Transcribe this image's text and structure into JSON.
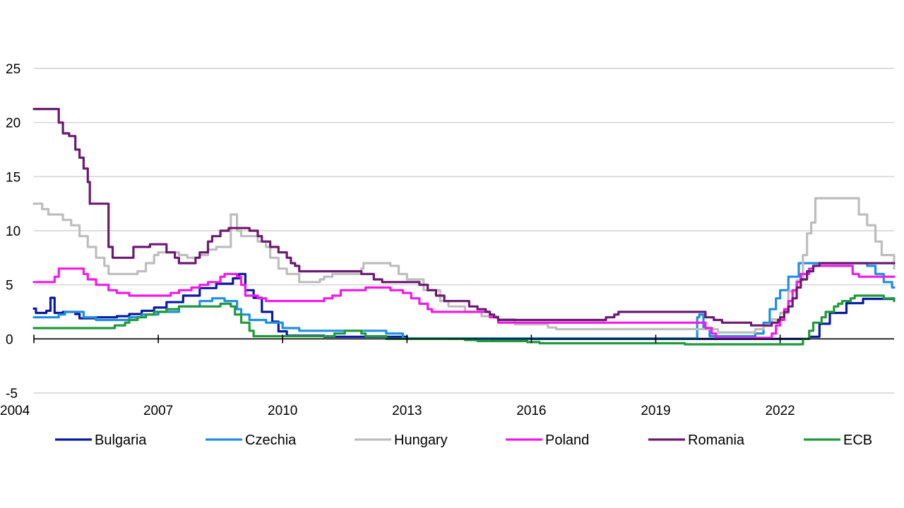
{
  "chart_data": {
    "type": "line",
    "title": "",
    "xlabel": "",
    "ylabel": "",
    "xlim": [
      2004,
      2024.75
    ],
    "ylim": [
      -5,
      25
    ],
    "yticks": [
      -5,
      0,
      5,
      10,
      15,
      20,
      25
    ],
    "xticks": [
      2004,
      2007,
      2010,
      2013,
      2016,
      2019,
      2022
    ],
    "ytick_labels": [
      "-5",
      "0",
      "5",
      "10",
      "15",
      "20",
      "25"
    ],
    "xtick_labels": [
      "2004",
      "2007",
      "2010",
      "2013",
      "2016",
      "2019",
      "2022"
    ],
    "grid": "horizontal",
    "legend_position": "bottom",
    "step": true,
    "series": [
      {
        "name": "Bulgaria",
        "color": "#0a1aa0",
        "points": [
          [
            2004.0,
            2.8
          ],
          [
            2004.05,
            2.4
          ],
          [
            2004.3,
            2.6
          ],
          [
            2004.4,
            3.8
          ],
          [
            2004.5,
            2.4
          ],
          [
            2004.7,
            2.5
          ],
          [
            2005.0,
            2.3
          ],
          [
            2005.1,
            1.9
          ],
          [
            2005.5,
            2.0
          ],
          [
            2006.0,
            2.1
          ],
          [
            2006.3,
            2.3
          ],
          [
            2006.6,
            2.6
          ],
          [
            2006.9,
            2.9
          ],
          [
            2007.2,
            3.4
          ],
          [
            2007.6,
            4.0
          ],
          [
            2008.0,
            4.7
          ],
          [
            2008.4,
            5.1
          ],
          [
            2008.8,
            5.6
          ],
          [
            2008.95,
            6.0
          ],
          [
            2009.1,
            4.5
          ],
          [
            2009.3,
            3.8
          ],
          [
            2009.5,
            2.5
          ],
          [
            2009.75,
            1.6
          ],
          [
            2009.9,
            0.7
          ],
          [
            2010.1,
            0.3
          ],
          [
            2011.0,
            0.2
          ],
          [
            2012.0,
            0.2
          ],
          [
            2013.0,
            0.05
          ],
          [
            2014.0,
            0.02
          ],
          [
            2015.0,
            0.01
          ],
          [
            2016.0,
            0.0
          ],
          [
            2022.5,
            0.0
          ],
          [
            2022.7,
            0.2
          ],
          [
            2022.95,
            1.4
          ],
          [
            2023.2,
            2.4
          ],
          [
            2023.6,
            3.3
          ],
          [
            2024.0,
            3.7
          ],
          [
            2024.75,
            3.7
          ]
        ]
      },
      {
        "name": "Czechia",
        "color": "#1e8fe0",
        "points": [
          [
            2004.0,
            2.0
          ],
          [
            2004.6,
            2.25
          ],
          [
            2004.75,
            2.5
          ],
          [
            2005.2,
            2.0
          ],
          [
            2005.5,
            1.75
          ],
          [
            2006.3,
            2.0
          ],
          [
            2006.6,
            2.25
          ],
          [
            2007.0,
            2.5
          ],
          [
            2007.5,
            3.0
          ],
          [
            2008.0,
            3.5
          ],
          [
            2008.3,
            3.75
          ],
          [
            2008.6,
            3.5
          ],
          [
            2008.9,
            2.75
          ],
          [
            2009.0,
            2.25
          ],
          [
            2009.2,
            1.75
          ],
          [
            2009.6,
            1.5
          ],
          [
            2010.0,
            1.0
          ],
          [
            2010.4,
            0.75
          ],
          [
            2012.0,
            0.75
          ],
          [
            2012.5,
            0.5
          ],
          [
            2012.9,
            0.05
          ],
          [
            2020.0,
            2.0
          ],
          [
            2020.05,
            2.25
          ],
          [
            2020.15,
            1.0
          ],
          [
            2020.3,
            0.25
          ],
          [
            2021.4,
            0.5
          ],
          [
            2021.6,
            1.5
          ],
          [
            2021.75,
            2.75
          ],
          [
            2021.9,
            3.75
          ],
          [
            2022.0,
            4.5
          ],
          [
            2022.2,
            5.75
          ],
          [
            2022.45,
            7.0
          ],
          [
            2024.1,
            6.75
          ],
          [
            2024.3,
            6.0
          ],
          [
            2024.5,
            5.25
          ],
          [
            2024.7,
            4.75
          ],
          [
            2024.75,
            4.75
          ]
        ]
      },
      {
        "name": "Hungary",
        "color": "#bdbdbd",
        "points": [
          [
            2004.0,
            12.5
          ],
          [
            2004.2,
            12.0
          ],
          [
            2004.35,
            11.5
          ],
          [
            2004.7,
            11.0
          ],
          [
            2004.9,
            10.5
          ],
          [
            2005.1,
            9.5
          ],
          [
            2005.3,
            8.5
          ],
          [
            2005.5,
            7.5
          ],
          [
            2005.7,
            6.75
          ],
          [
            2005.8,
            6.0
          ],
          [
            2006.5,
            6.25
          ],
          [
            2006.7,
            7.0
          ],
          [
            2006.9,
            7.75
          ],
          [
            2007.0,
            8.0
          ],
          [
            2007.5,
            7.75
          ],
          [
            2007.7,
            7.5
          ],
          [
            2008.0,
            7.75
          ],
          [
            2008.2,
            8.25
          ],
          [
            2008.4,
            8.5
          ],
          [
            2008.75,
            11.5
          ],
          [
            2008.9,
            10.0
          ],
          [
            2009.0,
            9.5
          ],
          [
            2009.4,
            9.0
          ],
          [
            2009.6,
            8.5
          ],
          [
            2009.7,
            7.5
          ],
          [
            2009.9,
            6.5
          ],
          [
            2010.1,
            6.0
          ],
          [
            2010.4,
            5.25
          ],
          [
            2010.9,
            5.5
          ],
          [
            2011.0,
            5.75
          ],
          [
            2011.2,
            6.0
          ],
          [
            2011.9,
            6.5
          ],
          [
            2011.95,
            7.0
          ],
          [
            2012.6,
            6.75
          ],
          [
            2012.8,
            6.0
          ],
          [
            2013.0,
            5.5
          ],
          [
            2013.4,
            4.5
          ],
          [
            2013.8,
            3.5
          ],
          [
            2014.0,
            3.0
          ],
          [
            2014.4,
            2.5
          ],
          [
            2014.8,
            2.1
          ],
          [
            2015.2,
            1.8
          ],
          [
            2015.6,
            1.35
          ],
          [
            2016.4,
            1.05
          ],
          [
            2016.6,
            0.9
          ],
          [
            2020.5,
            0.6
          ],
          [
            2021.4,
            0.9
          ],
          [
            2021.6,
            1.2
          ],
          [
            2021.8,
            1.8
          ],
          [
            2022.0,
            2.4
          ],
          [
            2022.2,
            4.4
          ],
          [
            2022.4,
            5.4
          ],
          [
            2022.55,
            7.75
          ],
          [
            2022.65,
            9.75
          ],
          [
            2022.75,
            10.75
          ],
          [
            2022.85,
            13.0
          ],
          [
            2023.8,
            13.0
          ],
          [
            2023.9,
            11.5
          ],
          [
            2024.1,
            10.5
          ],
          [
            2024.3,
            9.0
          ],
          [
            2024.45,
            7.75
          ],
          [
            2024.75,
            6.5
          ]
        ]
      },
      {
        "name": "Poland",
        "color": "#f218e8",
        "points": [
          [
            2004.0,
            5.25
          ],
          [
            2004.5,
            5.75
          ],
          [
            2004.6,
            6.5
          ],
          [
            2005.2,
            6.0
          ],
          [
            2005.3,
            5.5
          ],
          [
            2005.5,
            5.0
          ],
          [
            2005.8,
            4.5
          ],
          [
            2006.0,
            4.25
          ],
          [
            2006.3,
            4.0
          ],
          [
            2007.3,
            4.25
          ],
          [
            2007.5,
            4.5
          ],
          [
            2007.8,
            4.75
          ],
          [
            2008.0,
            5.0
          ],
          [
            2008.2,
            5.25
          ],
          [
            2008.5,
            5.75
          ],
          [
            2008.6,
            6.0
          ],
          [
            2008.9,
            5.75
          ],
          [
            2009.0,
            5.0
          ],
          [
            2009.1,
            4.0
          ],
          [
            2009.4,
            3.75
          ],
          [
            2009.6,
            3.5
          ],
          [
            2011.0,
            3.75
          ],
          [
            2011.2,
            4.0
          ],
          [
            2011.4,
            4.5
          ],
          [
            2012.0,
            4.75
          ],
          [
            2012.6,
            4.5
          ],
          [
            2012.9,
            4.25
          ],
          [
            2013.1,
            3.75
          ],
          [
            2013.3,
            3.25
          ],
          [
            2013.5,
            2.75
          ],
          [
            2013.6,
            2.5
          ],
          [
            2015.0,
            2.0
          ],
          [
            2015.2,
            1.5
          ],
          [
            2020.2,
            1.0
          ],
          [
            2020.35,
            0.5
          ],
          [
            2020.45,
            0.1
          ],
          [
            2021.8,
            0.5
          ],
          [
            2021.9,
            1.25
          ],
          [
            2022.0,
            1.75
          ],
          [
            2022.1,
            2.75
          ],
          [
            2022.2,
            3.5
          ],
          [
            2022.3,
            4.5
          ],
          [
            2022.4,
            5.25
          ],
          [
            2022.5,
            6.0
          ],
          [
            2022.7,
            6.5
          ],
          [
            2022.8,
            6.75
          ],
          [
            2023.7,
            6.75
          ],
          [
            2023.75,
            6.0
          ],
          [
            2023.9,
            5.75
          ],
          [
            2024.75,
            5.75
          ]
        ]
      },
      {
        "name": "Romania",
        "color": "#6a1a70",
        "points": [
          [
            2004.0,
            21.25
          ],
          [
            2004.45,
            21.25
          ],
          [
            2004.6,
            20.0
          ],
          [
            2004.7,
            19.0
          ],
          [
            2004.85,
            18.75
          ],
          [
            2005.0,
            17.5
          ],
          [
            2005.1,
            16.75
          ],
          [
            2005.2,
            15.75
          ],
          [
            2005.3,
            14.5
          ],
          [
            2005.35,
            12.5
          ],
          [
            2005.7,
            12.5
          ],
          [
            2005.8,
            8.5
          ],
          [
            2005.9,
            7.5
          ],
          [
            2006.3,
            7.5
          ],
          [
            2006.4,
            8.5
          ],
          [
            2006.8,
            8.75
          ],
          [
            2007.1,
            8.75
          ],
          [
            2007.2,
            8.0
          ],
          [
            2007.4,
            7.5
          ],
          [
            2007.5,
            7.0
          ],
          [
            2007.9,
            7.5
          ],
          [
            2008.0,
            8.0
          ],
          [
            2008.2,
            9.0
          ],
          [
            2008.3,
            9.5
          ],
          [
            2008.5,
            10.0
          ],
          [
            2008.7,
            10.25
          ],
          [
            2009.2,
            10.0
          ],
          [
            2009.4,
            9.5
          ],
          [
            2009.5,
            9.0
          ],
          [
            2009.7,
            8.5
          ],
          [
            2009.9,
            8.0
          ],
          [
            2010.1,
            7.5
          ],
          [
            2010.2,
            7.0
          ],
          [
            2010.3,
            6.75
          ],
          [
            2010.4,
            6.25
          ],
          [
            2011.5,
            6.25
          ],
          [
            2011.9,
            6.0
          ],
          [
            2012.2,
            5.5
          ],
          [
            2012.4,
            5.25
          ],
          [
            2013.3,
            5.0
          ],
          [
            2013.5,
            4.5
          ],
          [
            2013.7,
            4.0
          ],
          [
            2013.9,
            3.5
          ],
          [
            2014.5,
            3.0
          ],
          [
            2014.7,
            2.75
          ],
          [
            2014.9,
            2.5
          ],
          [
            2015.0,
            2.25
          ],
          [
            2015.1,
            2.0
          ],
          [
            2015.2,
            1.75
          ],
          [
            2017.8,
            2.0
          ],
          [
            2018.0,
            2.25
          ],
          [
            2018.1,
            2.5
          ],
          [
            2020.2,
            2.0
          ],
          [
            2020.4,
            1.75
          ],
          [
            2020.6,
            1.5
          ],
          [
            2021.3,
            1.25
          ],
          [
            2021.8,
            1.5
          ],
          [
            2021.95,
            1.75
          ],
          [
            2022.0,
            2.0
          ],
          [
            2022.1,
            2.5
          ],
          [
            2022.2,
            3.0
          ],
          [
            2022.3,
            3.75
          ],
          [
            2022.4,
            4.75
          ],
          [
            2022.5,
            5.5
          ],
          [
            2022.65,
            6.25
          ],
          [
            2022.8,
            6.75
          ],
          [
            2022.95,
            7.0
          ],
          [
            2024.75,
            7.0
          ]
        ]
      },
      {
        "name": "ECB",
        "color": "#1e9a3a",
        "points": [
          [
            2004.0,
            1.0
          ],
          [
            2005.5,
            1.0
          ],
          [
            2005.95,
            1.25
          ],
          [
            2006.2,
            1.5
          ],
          [
            2006.3,
            1.75
          ],
          [
            2006.5,
            2.0
          ],
          [
            2006.7,
            2.25
          ],
          [
            2006.9,
            2.5
          ],
          [
            2007.2,
            2.75
          ],
          [
            2007.5,
            3.0
          ],
          [
            2008.5,
            3.25
          ],
          [
            2008.75,
            3.0
          ],
          [
            2008.85,
            2.25
          ],
          [
            2009.0,
            1.5
          ],
          [
            2009.2,
            0.75
          ],
          [
            2009.3,
            0.25
          ],
          [
            2011.25,
            0.5
          ],
          [
            2011.5,
            0.75
          ],
          [
            2011.9,
            0.5
          ],
          [
            2012.0,
            0.25
          ],
          [
            2012.5,
            0.0
          ],
          [
            2014.4,
            -0.1
          ],
          [
            2014.7,
            -0.2
          ],
          [
            2015.9,
            -0.3
          ],
          [
            2016.2,
            -0.4
          ],
          [
            2019.7,
            -0.5
          ],
          [
            2022.5,
            -0.5
          ],
          [
            2022.55,
            0.0
          ],
          [
            2022.7,
            0.75
          ],
          [
            2022.8,
            1.5
          ],
          [
            2023.0,
            2.0
          ],
          [
            2023.1,
            2.5
          ],
          [
            2023.3,
            3.0
          ],
          [
            2023.4,
            3.25
          ],
          [
            2023.5,
            3.5
          ],
          [
            2023.7,
            3.75
          ],
          [
            2023.8,
            4.0
          ],
          [
            2024.5,
            3.75
          ],
          [
            2024.75,
            3.5
          ]
        ]
      }
    ]
  }
}
